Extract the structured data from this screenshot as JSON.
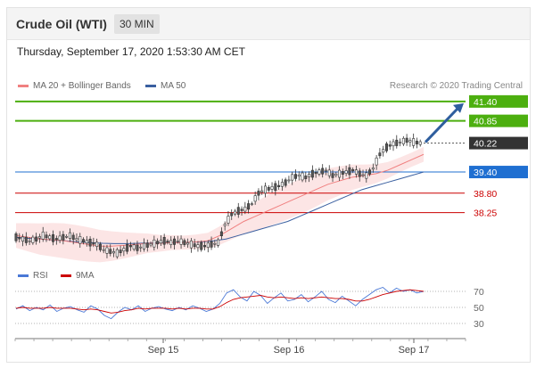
{
  "header": {
    "title": "Crude Oil (WTI)",
    "interval": "30 MIN"
  },
  "timestamp": "Thursday, September 17, 2020 1:53:30 AM CET",
  "legend": {
    "ma20_label": "MA 20 + Bollinger Bands",
    "ma50_label": "MA 50",
    "credit": "Research © 2020 Trading Central",
    "ma20_color": "#f08080",
    "ma50_color": "#3a5fa0"
  },
  "rsi_legend": {
    "rsi_label": "RSI",
    "ma9_label": "9MA",
    "rsi_color": "#4a78d6",
    "ma9_color": "#cc0000"
  },
  "chart_data": [
    {
      "type": "candlestick",
      "x_tick_labels": [
        "Sep 15",
        "Sep 16",
        "Sep 17"
      ],
      "levels": [
        {
          "value": 41.4,
          "label": "41.40",
          "kind": "resistance",
          "color": "#4caf0f"
        },
        {
          "value": 40.85,
          "label": "40.85",
          "kind": "resistance",
          "color": "#4caf0f"
        },
        {
          "value": 40.22,
          "label": "40.22",
          "kind": "last-price",
          "color": "#333333"
        },
        {
          "value": 39.4,
          "label": "39.40",
          "kind": "pivot",
          "color": "#1f6fd1"
        },
        {
          "value": 38.8,
          "label": "38.80",
          "kind": "support",
          "color": "#cc0000"
        },
        {
          "value": 38.25,
          "label": "38.25",
          "kind": "support",
          "color": "#cc0000"
        }
      ],
      "ylim": [
        36.8,
        41.75
      ],
      "last_price": 40.22,
      "close_path": [
        37.55,
        37.5,
        37.45,
        37.5,
        37.6,
        37.55,
        37.5,
        37.55,
        37.6,
        37.5,
        37.45,
        37.4,
        37.35,
        37.2,
        37.15,
        37.1,
        37.2,
        37.3,
        37.25,
        37.3,
        37.35,
        37.4,
        37.45,
        37.4,
        37.45,
        37.4,
        37.35,
        37.3,
        37.3,
        37.35,
        37.4,
        37.9,
        38.2,
        38.3,
        38.35,
        38.5,
        38.8,
        38.9,
        38.95,
        39.0,
        39.1,
        39.25,
        39.3,
        39.25,
        39.35,
        39.4,
        39.45,
        39.3,
        39.35,
        39.4,
        39.45,
        39.35,
        39.3,
        39.5,
        39.9,
        40.1,
        40.2,
        40.25,
        40.3,
        40.25,
        40.22
      ],
      "ma20_path": [
        37.6,
        37.55,
        37.5,
        37.48,
        37.45,
        37.4,
        37.35,
        37.3,
        37.3,
        37.32,
        37.35,
        37.38,
        37.38,
        37.4,
        37.4,
        37.42,
        37.45,
        37.6,
        37.8,
        38.0,
        38.15,
        38.3,
        38.45,
        38.6,
        38.75,
        38.9,
        39.05,
        39.15,
        39.25,
        39.3,
        39.35,
        39.45,
        39.6,
        39.75,
        39.9
      ],
      "ma50_path": [
        37.55,
        37.52,
        37.5,
        37.47,
        37.45,
        37.42,
        37.4,
        37.38,
        37.37,
        37.37,
        37.38,
        37.39,
        37.4,
        37.4,
        37.41,
        37.42,
        37.45,
        37.5,
        37.6,
        37.7,
        37.8,
        37.9,
        38.0,
        38.15,
        38.3,
        38.45,
        38.6,
        38.75,
        38.9,
        39.0,
        39.1,
        39.2,
        39.3,
        39.4
      ],
      "projection": {
        "from": 40.22,
        "to": 41.4
      }
    },
    {
      "type": "line",
      "name": "RSI",
      "y_tick_labels": [
        "70",
        "50",
        "30"
      ],
      "yticks": [
        70,
        50,
        30
      ],
      "ylim": [
        20,
        80
      ],
      "series": [
        {
          "name": "RSI",
          "values": [
            48,
            52,
            46,
            50,
            47,
            53,
            45,
            49,
            51,
            47,
            44,
            52,
            48,
            40,
            36,
            44,
            50,
            47,
            52,
            45,
            49,
            51,
            48,
            46,
            50,
            47,
            52,
            49,
            45,
            48,
            55,
            68,
            72,
            63,
            58,
            70,
            65,
            55,
            62,
            68,
            58,
            60,
            66,
            57,
            63,
            70,
            60,
            56,
            64,
            58,
            52,
            60,
            66,
            72,
            75,
            68,
            74,
            70,
            72,
            68,
            70
          ]
        },
        {
          "name": "9MA",
          "values": [
            49,
            50,
            49,
            49,
            49,
            50,
            49,
            49,
            49,
            48,
            47,
            48,
            47,
            45,
            43,
            44,
            46,
            47,
            49,
            48,
            49,
            49,
            49,
            48,
            49,
            48,
            49,
            49,
            48,
            48,
            51,
            56,
            60,
            62,
            63,
            64,
            65,
            63,
            62,
            63,
            62,
            61,
            62,
            61,
            62,
            63,
            62,
            61,
            61,
            60,
            58,
            58,
            60,
            63,
            66,
            68,
            70,
            71,
            72,
            71,
            70
          ]
        }
      ]
    }
  ]
}
